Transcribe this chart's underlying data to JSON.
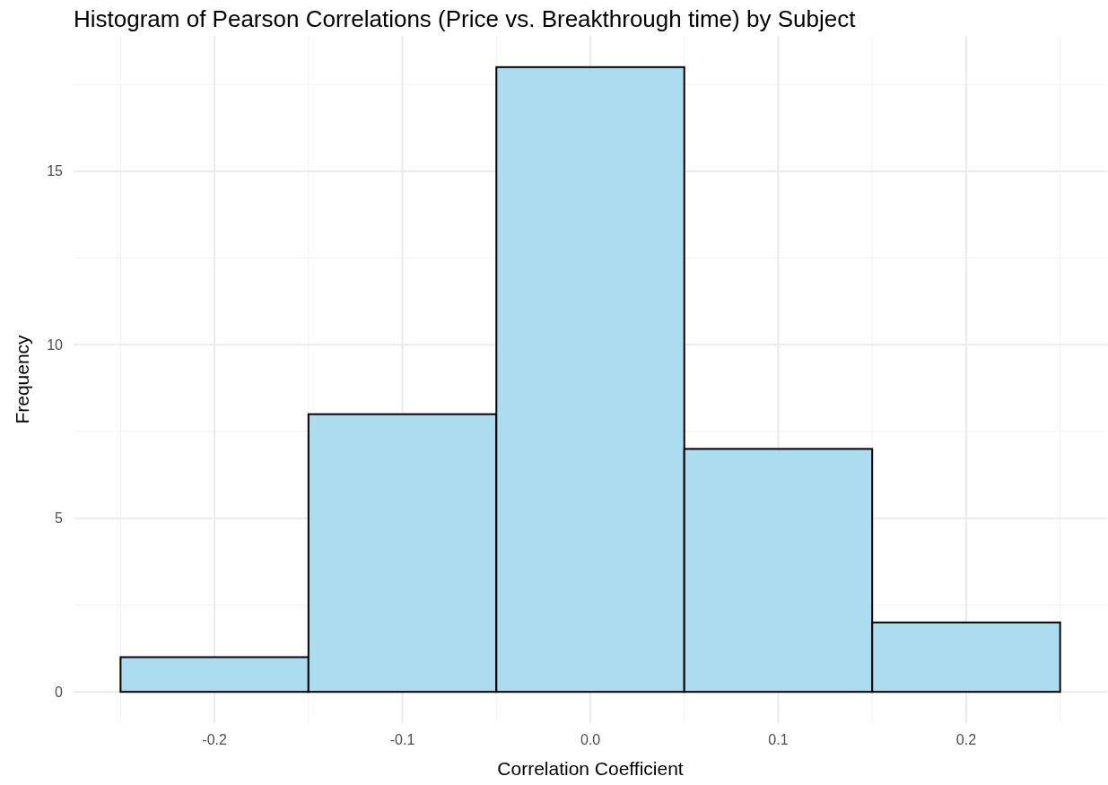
{
  "chart_data": {
    "type": "histogram",
    "title": "Histogram of Pearson Correlations (Price vs. Breakthrough time) by Subject",
    "xlabel": "Correlation Coefficient",
    "ylabel": "Frequency",
    "bins": [
      -0.25,
      -0.15,
      -0.05,
      0.05,
      0.15,
      0.25
    ],
    "values": [
      1,
      8,
      18,
      7,
      2
    ],
    "color": "#abdcf0",
    "xlim": [
      -0.275,
      0.275
    ],
    "xticks": [
      -0.2,
      -0.1,
      {
        "value": 0,
        "label": "0.0"
      },
      0.1,
      0.2
    ],
    "ylim": [
      -0.9,
      18.9
    ],
    "yticks": [
      0,
      5,
      10,
      15
    ],
    "grid": true
  }
}
